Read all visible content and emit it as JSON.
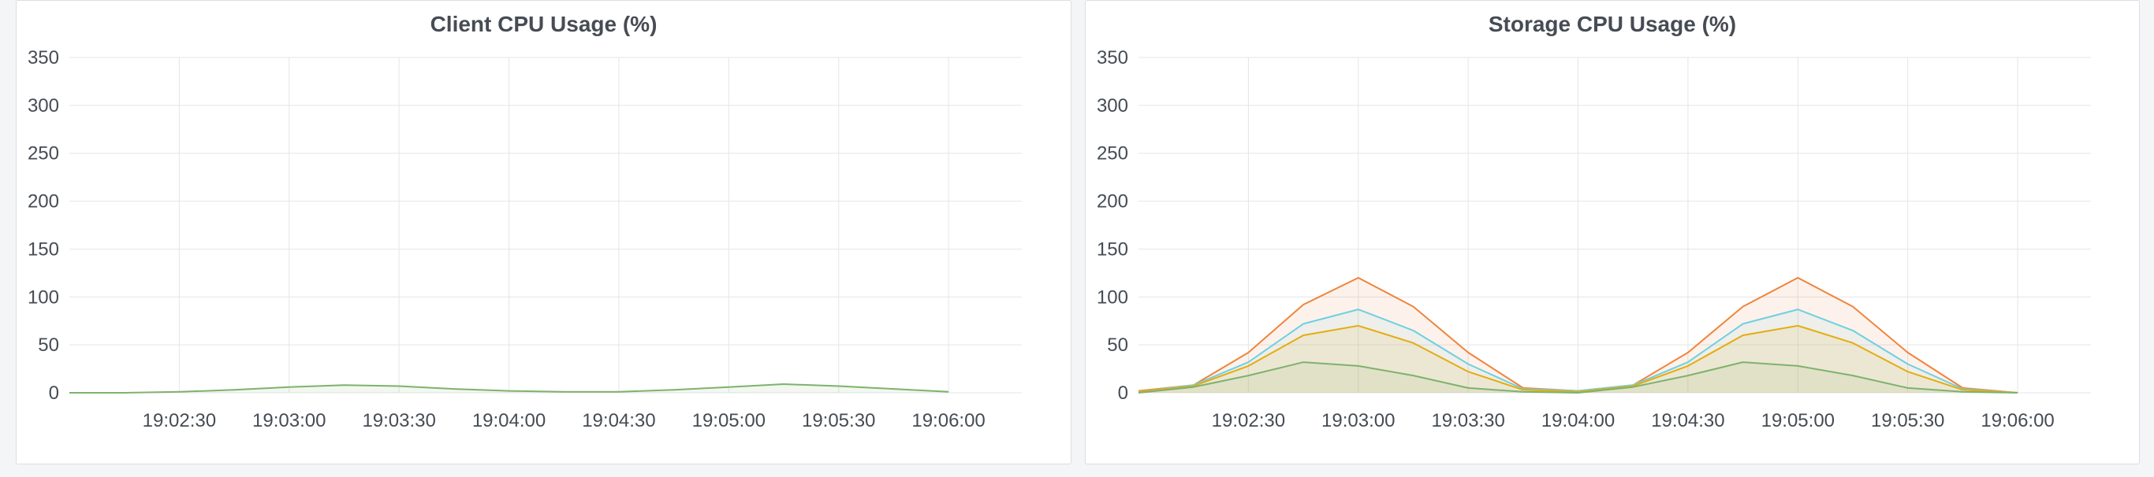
{
  "panels": [
    {
      "title": "Client CPU Usage (%)"
    },
    {
      "title": "Storage CPU Usage (%)"
    }
  ],
  "chart_data": [
    {
      "type": "area",
      "title": "Client CPU Usage (%)",
      "ylim": [
        0,
        350
      ],
      "yticks": [
        0,
        50,
        100,
        150,
        200,
        250,
        300,
        350
      ],
      "xlim": [
        "19:02:00",
        "19:06:20"
      ],
      "xticks": [
        "19:02:30",
        "19:03:00",
        "19:03:30",
        "19:04:00",
        "19:04:30",
        "19:05:00",
        "19:05:30",
        "19:06:00"
      ],
      "grid": true,
      "x": [
        "19:02:00",
        "19:02:15",
        "19:02:30",
        "19:02:45",
        "19:03:00",
        "19:03:15",
        "19:03:30",
        "19:03:45",
        "19:04:00",
        "19:04:15",
        "19:04:30",
        "19:04:45",
        "19:05:00",
        "19:05:15",
        "19:05:30",
        "19:05:45",
        "19:06:00"
      ],
      "series": [
        {
          "color": "#7eb26d",
          "values": [
            0,
            0,
            1,
            3,
            6,
            8,
            7,
            4,
            2,
            1,
            1,
            3,
            6,
            9,
            7,
            4,
            1
          ]
        }
      ]
    },
    {
      "type": "area",
      "title": "Storage CPU Usage (%)",
      "ylim": [
        0,
        350
      ],
      "yticks": [
        0,
        50,
        100,
        150,
        200,
        250,
        300,
        350
      ],
      "xlim": [
        "19:02:00",
        "19:06:20"
      ],
      "xticks": [
        "19:02:30",
        "19:03:00",
        "19:03:30",
        "19:04:00",
        "19:04:30",
        "19:05:00",
        "19:05:30",
        "19:06:00"
      ],
      "grid": true,
      "x": [
        "19:02:00",
        "19:02:15",
        "19:02:30",
        "19:02:45",
        "19:03:00",
        "19:03:15",
        "19:03:30",
        "19:03:45",
        "19:04:00",
        "19:04:15",
        "19:04:30",
        "19:04:45",
        "19:05:00",
        "19:05:15",
        "19:05:30",
        "19:05:45",
        "19:06:00"
      ],
      "series": [
        {
          "color": "#ef843c",
          "values": [
            2,
            8,
            42,
            92,
            120,
            90,
            42,
            5,
            2,
            8,
            42,
            90,
            120,
            90,
            42,
            5,
            0
          ]
        },
        {
          "color": "#6ed0e0",
          "values": [
            1,
            8,
            32,
            72,
            87,
            65,
            30,
            4,
            2,
            8,
            32,
            72,
            87,
            65,
            30,
            4,
            0
          ]
        },
        {
          "color": "#e5ac0e",
          "values": [
            1,
            7,
            28,
            60,
            70,
            52,
            22,
            3,
            1,
            7,
            28,
            60,
            70,
            52,
            22,
            3,
            0
          ]
        },
        {
          "color": "#7eb26d",
          "values": [
            0,
            6,
            18,
            32,
            28,
            18,
            5,
            1,
            0,
            6,
            18,
            32,
            28,
            18,
            5,
            1,
            0
          ]
        }
      ]
    }
  ]
}
